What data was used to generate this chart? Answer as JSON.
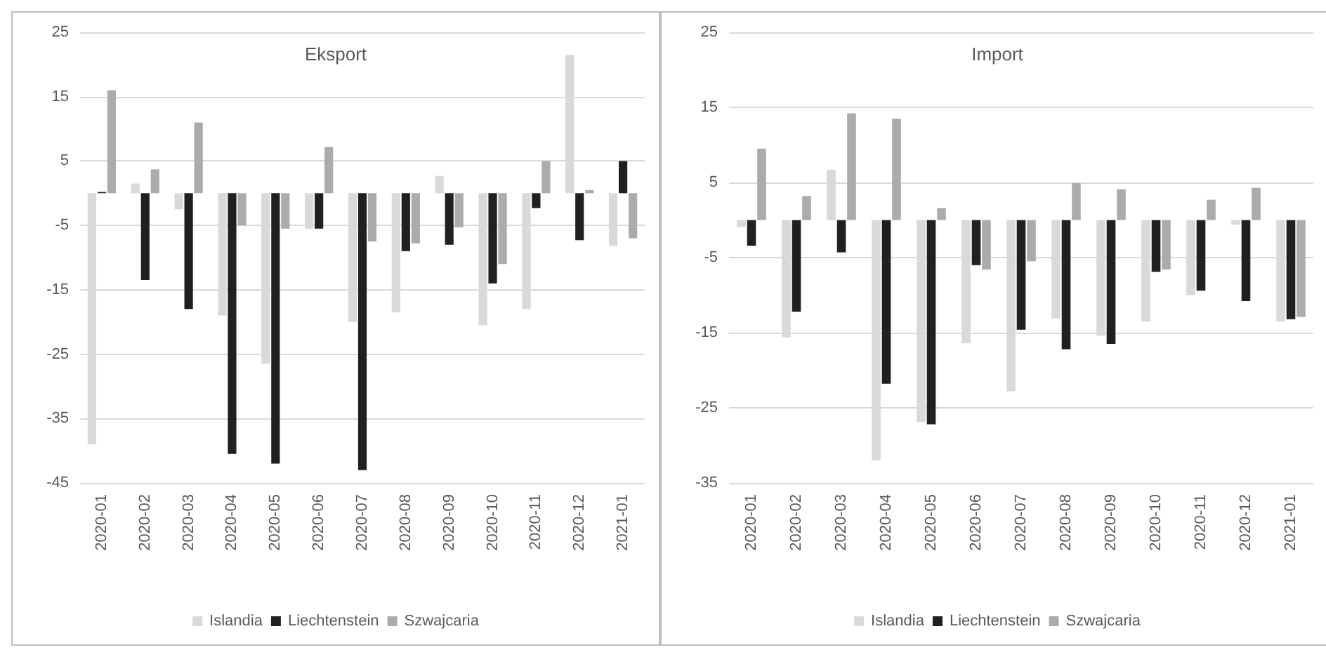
{
  "chart_data": [
    {
      "type": "bar",
      "title": "Eksport",
      "categories": [
        "2020-01",
        "2020-02",
        "2020-03",
        "2020-04",
        "2020-05",
        "2020-06",
        "2020-07",
        "2020-08",
        "2020-09",
        "2020-10",
        "2020-11",
        "2020-12",
        "2021-01"
      ],
      "series": [
        {
          "name": "Islandia",
          "color": "#d9d9d9",
          "values": [
            -39,
            1.5,
            -2.5,
            -19,
            -26.5,
            -5.5,
            -20,
            -18.5,
            2.7,
            -20.5,
            -18,
            21.5,
            -8.2
          ]
        },
        {
          "name": "Liechtenstein",
          "color": "#231f20",
          "values": [
            0.2,
            -13.5,
            -18,
            -40.5,
            -42,
            -5.5,
            -43,
            -9,
            -8,
            -14,
            -2.3,
            -7.3,
            5
          ]
        },
        {
          "name": "Szwajcaria",
          "color": "#ababab",
          "values": [
            16,
            3.7,
            11,
            -5,
            -5.5,
            7.2,
            -7.5,
            -7.8,
            -5.3,
            -11,
            5,
            0.5,
            -7
          ]
        }
      ],
      "ylim": [
        -45,
        25
      ],
      "yticks": [
        -45,
        -35,
        -25,
        -15,
        -5,
        5,
        15,
        25
      ],
      "grid": "y",
      "legend": "bottom"
    },
    {
      "type": "bar",
      "title": "Import",
      "categories": [
        "2020-01",
        "2020-02",
        "2020-03",
        "2020-04",
        "2020-05",
        "2020-06",
        "2020-07",
        "2020-08",
        "2020-09",
        "2020-10",
        "2020-11",
        "2020-12",
        "2021-01"
      ],
      "series": [
        {
          "name": "Islandia",
          "color": "#d9d9d9",
          "values": [
            -0.9,
            -15.6,
            6.7,
            -32,
            -26.9,
            -16.4,
            -22.8,
            -13.1,
            -15.4,
            -13.5,
            -10,
            -0.6,
            -13.5
          ]
        },
        {
          "name": "Liechtenstein",
          "color": "#231f20",
          "values": [
            -3.4,
            -12.2,
            -4.3,
            -21.8,
            -27.2,
            -6,
            -14.6,
            -17.2,
            -16.5,
            -6.9,
            -9.4,
            -10.8,
            -13.2
          ]
        },
        {
          "name": "Szwajcaria",
          "color": "#ababab",
          "values": [
            9.5,
            3.2,
            14.2,
            13.5,
            1.6,
            -6.6,
            -5.5,
            4.9,
            4.1,
            -6.6,
            2.7,
            4.3,
            -12.9
          ]
        }
      ],
      "ylim": [
        -35,
        25
      ],
      "yticks": [
        -35,
        -25,
        -15,
        -5,
        5,
        15,
        25
      ],
      "grid": "y",
      "legend": "bottom"
    }
  ]
}
